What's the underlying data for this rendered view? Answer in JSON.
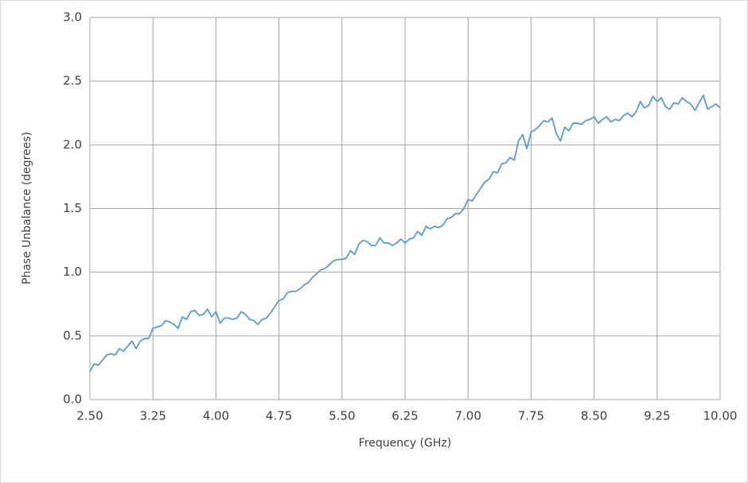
{
  "chart_data": {
    "type": "line",
    "xlabel": "Frequency (GHz)",
    "ylabel": "Phase Unbalance (degrees)",
    "x": [
      2.5,
      2.55,
      2.6,
      2.65,
      2.7,
      2.75,
      2.8,
      2.85,
      2.9,
      2.95,
      3.0,
      3.05,
      3.1,
      3.15,
      3.2,
      3.25,
      3.3,
      3.35,
      3.4,
      3.45,
      3.5,
      3.55,
      3.6,
      3.65,
      3.7,
      3.75,
      3.8,
      3.85,
      3.9,
      3.95,
      4.0,
      4.05,
      4.1,
      4.15,
      4.2,
      4.25,
      4.3,
      4.35,
      4.4,
      4.45,
      4.5,
      4.55,
      4.6,
      4.65,
      4.7,
      4.75,
      4.8,
      4.85,
      4.9,
      4.95,
      5.0,
      5.05,
      5.1,
      5.15,
      5.2,
      5.25,
      5.3,
      5.35,
      5.4,
      5.45,
      5.5,
      5.55,
      5.6,
      5.65,
      5.7,
      5.75,
      5.8,
      5.85,
      5.9,
      5.95,
      6.0,
      6.05,
      6.1,
      6.15,
      6.2,
      6.25,
      6.3,
      6.35,
      6.4,
      6.45,
      6.5,
      6.55,
      6.6,
      6.65,
      6.7,
      6.75,
      6.8,
      6.85,
      6.9,
      6.95,
      7.0,
      7.05,
      7.1,
      7.15,
      7.2,
      7.25,
      7.3,
      7.35,
      7.4,
      7.45,
      7.5,
      7.55,
      7.6,
      7.65,
      7.7,
      7.75,
      7.8,
      7.85,
      7.9,
      7.95,
      8.0,
      8.05,
      8.1,
      8.15,
      8.2,
      8.25,
      8.3,
      8.35,
      8.4,
      8.45,
      8.5,
      8.55,
      8.6,
      8.65,
      8.7,
      8.75,
      8.8,
      8.85,
      8.9,
      8.95,
      9.0,
      9.05,
      9.1,
      9.15,
      9.2,
      9.25,
      9.3,
      9.35,
      9.4,
      9.45,
      9.5,
      9.55,
      9.6,
      9.65,
      9.7,
      9.75,
      9.8,
      9.85,
      9.9,
      9.95,
      10.0
    ],
    "series": [
      {
        "color": "#5b9bd5",
        "values": [
          0.22,
          0.28,
          0.27,
          0.31,
          0.35,
          0.36,
          0.35,
          0.4,
          0.38,
          0.42,
          0.46,
          0.4,
          0.46,
          0.48,
          0.48,
          0.56,
          0.57,
          0.58,
          0.62,
          0.61,
          0.59,
          0.56,
          0.65,
          0.63,
          0.69,
          0.7,
          0.66,
          0.67,
          0.71,
          0.65,
          0.69,
          0.6,
          0.64,
          0.64,
          0.63,
          0.64,
          0.69,
          0.67,
          0.63,
          0.62,
          0.59,
          0.63,
          0.64,
          0.68,
          0.73,
          0.78,
          0.79,
          0.84,
          0.85,
          0.85,
          0.87,
          0.9,
          0.92,
          0.96,
          0.99,
          1.02,
          1.03,
          1.06,
          1.09,
          1.1,
          1.1,
          1.11,
          1.17,
          1.14,
          1.22,
          1.25,
          1.24,
          1.21,
          1.21,
          1.27,
          1.23,
          1.23,
          1.21,
          1.23,
          1.26,
          1.23,
          1.26,
          1.27,
          1.32,
          1.29,
          1.36,
          1.34,
          1.36,
          1.35,
          1.37,
          1.42,
          1.43,
          1.46,
          1.46,
          1.5,
          1.57,
          1.56,
          1.61,
          1.66,
          1.71,
          1.73,
          1.79,
          1.78,
          1.85,
          1.86,
          1.9,
          1.88,
          2.03,
          2.08,
          1.97,
          2.1,
          2.12,
          2.15,
          2.19,
          2.18,
          2.21,
          2.09,
          2.03,
          2.14,
          2.11,
          2.17,
          2.17,
          2.16,
          2.19,
          2.2,
          2.22,
          2.17,
          2.2,
          2.22,
          2.18,
          2.2,
          2.19,
          2.23,
          2.25,
          2.22,
          2.26,
          2.34,
          2.29,
          2.31,
          2.38,
          2.34,
          2.37,
          2.3,
          2.28,
          2.33,
          2.32,
          2.37,
          2.34,
          2.32,
          2.27,
          2.33,
          2.39,
          2.28,
          2.3,
          2.32,
          2.29
        ]
      }
    ],
    "xlim": [
      2.5,
      10.0
    ],
    "xticks": [
      {
        "value": 2.5,
        "label": "2.50"
      },
      {
        "value": 3.25,
        "label": "3.25"
      },
      {
        "value": 4.0,
        "label": "4.00"
      },
      {
        "value": 4.75,
        "label": "4.75"
      },
      {
        "value": 5.5,
        "label": "5.50"
      },
      {
        "value": 6.25,
        "label": "6.25"
      },
      {
        "value": 7.0,
        "label": "7.00"
      },
      {
        "value": 7.75,
        "label": "7.75"
      },
      {
        "value": 8.5,
        "label": "8.50"
      },
      {
        "value": 9.25,
        "label": "9.25"
      },
      {
        "value": 10.0,
        "label": "10.00"
      }
    ],
    "ylim": [
      0,
      3
    ],
    "yticks": [
      {
        "value": 0,
        "label": "0.0"
      },
      {
        "value": 0.5,
        "label": "0.5"
      },
      {
        "value": 1.0,
        "label": "1.0"
      },
      {
        "value": 1.5,
        "label": "1.5"
      },
      {
        "value": 2.0,
        "label": "2.0"
      },
      {
        "value": 2.5,
        "label": "2.5"
      },
      {
        "value": 3.0,
        "label": "3.0"
      }
    ],
    "grid": true
  }
}
